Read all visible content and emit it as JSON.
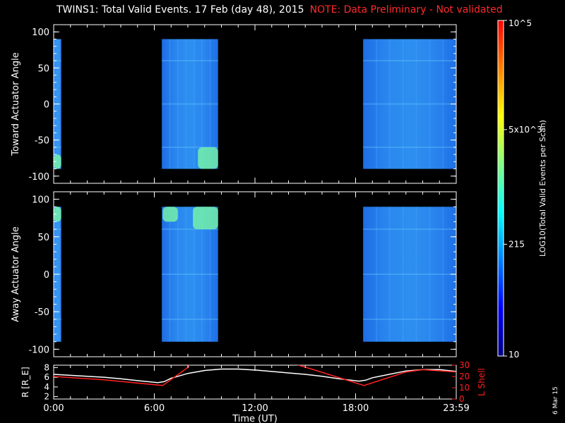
{
  "title": {
    "main": "TWINS1: Total Valid Events. 17 Feb (day  48), 2015",
    "note": "NOTE: Data Preliminary - Not validated"
  },
  "side_stamp": "6 Mar 15",
  "colors": {
    "note": "#ff2a2a",
    "background": "#000000",
    "axes": "#ffffff",
    "lshell": "#ff2020"
  },
  "chart_data": [
    {
      "type": "heatmap",
      "ylabel": "Toward Actuator Angle",
      "ylim": [
        -110,
        110
      ],
      "yticks": [
        "100",
        "50",
        "0",
        "-50",
        "-100"
      ],
      "xlim_hours": [
        0,
        24
      ],
      "data_blocks_hours": [
        [
          0.0,
          0.45
        ],
        [
          6.45,
          9.8
        ],
        [
          18.45,
          24.0
        ]
      ],
      "hot_spots": [
        {
          "start_hour": 8.6,
          "end_hour": 9.8,
          "angle_range": [
            -90,
            -60
          ],
          "level": "high"
        },
        {
          "start_hour": 0.0,
          "end_hour": 0.45,
          "angle_range": [
            -90,
            -70
          ],
          "level": "high"
        }
      ]
    },
    {
      "type": "heatmap",
      "ylabel": "Away Actuator Angle",
      "ylim": [
        -110,
        110
      ],
      "yticks": [
        "100",
        "50",
        "0",
        "-50",
        "-100"
      ],
      "xlim_hours": [
        0,
        24
      ],
      "data_blocks_hours": [
        [
          0.0,
          0.45
        ],
        [
          6.45,
          9.8
        ],
        [
          18.45,
          24.0
        ]
      ],
      "hot_spots": [
        {
          "start_hour": 6.5,
          "end_hour": 7.4,
          "angle_range": [
            70,
            90
          ],
          "level": "high"
        },
        {
          "start_hour": 8.3,
          "end_hour": 9.8,
          "angle_range": [
            60,
            90
          ],
          "level": "high"
        },
        {
          "start_hour": 0.0,
          "end_hour": 0.45,
          "angle_range": [
            70,
            90
          ],
          "level": "high"
        }
      ]
    },
    {
      "type": "line",
      "ylabel_left": "R [R_E]",
      "ylabel_right": "L Shell",
      "xlabel": "Time (UT)",
      "xticks": [
        "0:00",
        "6:00",
        "12:00",
        "18:00",
        "23:59"
      ],
      "left_ylim": [
        1.5,
        8.5
      ],
      "left_yticks": [
        "8",
        "6",
        "4",
        "2"
      ],
      "right_ylim": [
        0,
        30
      ],
      "right_yticks": [
        "30",
        "20",
        "10",
        "0"
      ],
      "series": [
        {
          "name": "R",
          "color": "#ffffff",
          "x": [
            0.0,
            1.0,
            2.0,
            3.0,
            4.0,
            5.0,
            6.2,
            6.6,
            7.0,
            8.0,
            9.0,
            10.0,
            11.0,
            12.0,
            13.0,
            14.0,
            15.0,
            16.0,
            17.0,
            18.2,
            18.6,
            19.0,
            20.0,
            21.0,
            22.0,
            23.0,
            24.0
          ],
          "values": [
            6.6,
            6.4,
            6.2,
            6.0,
            5.7,
            5.3,
            4.9,
            5.1,
            5.8,
            6.8,
            7.4,
            7.7,
            7.7,
            7.5,
            7.2,
            6.9,
            6.6,
            6.2,
            5.7,
            5.2,
            5.4,
            5.9,
            6.6,
            7.3,
            7.6,
            7.6,
            7.2
          ]
        },
        {
          "name": "L Shell",
          "color": "#ff2020",
          "x": [
            0.0,
            3.0,
            6.5,
            8.0,
            8.3,
            13.7,
            15.5,
            18.5,
            21.0,
            22.0,
            24.0
          ],
          "values": [
            20,
            17,
            12,
            28,
            34,
            34,
            26,
            12,
            24,
            26,
            24
          ]
        }
      ]
    }
  ],
  "colorbar": {
    "label": "LOG10(Total Valid Events per Scan)",
    "ticks": [
      "10",
      "215",
      "5x10^3",
      "10^5"
    ],
    "values": [
      10,
      215,
      5000,
      100000
    ],
    "colors": [
      "#00007f",
      "#0000ff",
      "#0080ff",
      "#00ffff",
      "#80ff80",
      "#ffff00",
      "#ff8000",
      "#ff0000"
    ]
  }
}
